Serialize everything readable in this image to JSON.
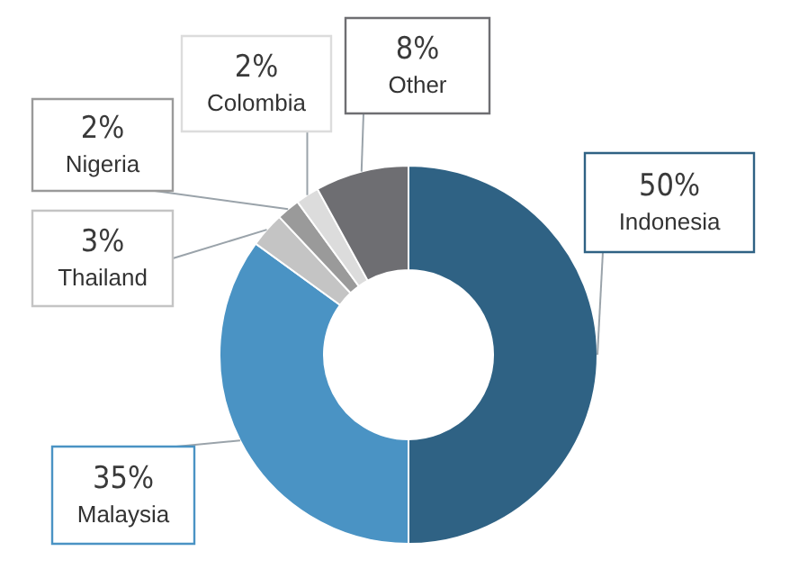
{
  "chart_data": {
    "type": "donut",
    "categories": [
      "Indonesia",
      "Malaysia",
      "Thailand",
      "Nigeria",
      "Colombia",
      "Other"
    ],
    "values": [
      50,
      35,
      3,
      2,
      2,
      8
    ],
    "value_labels": [
      "50%",
      "35%",
      "3%",
      "2%",
      "2%",
      "8%"
    ],
    "colors": [
      "#2f6284",
      "#4a93c4",
      "#c4c4c4",
      "#9a9a9a",
      "#dcdcdc",
      "#6e6e72"
    ]
  }
}
